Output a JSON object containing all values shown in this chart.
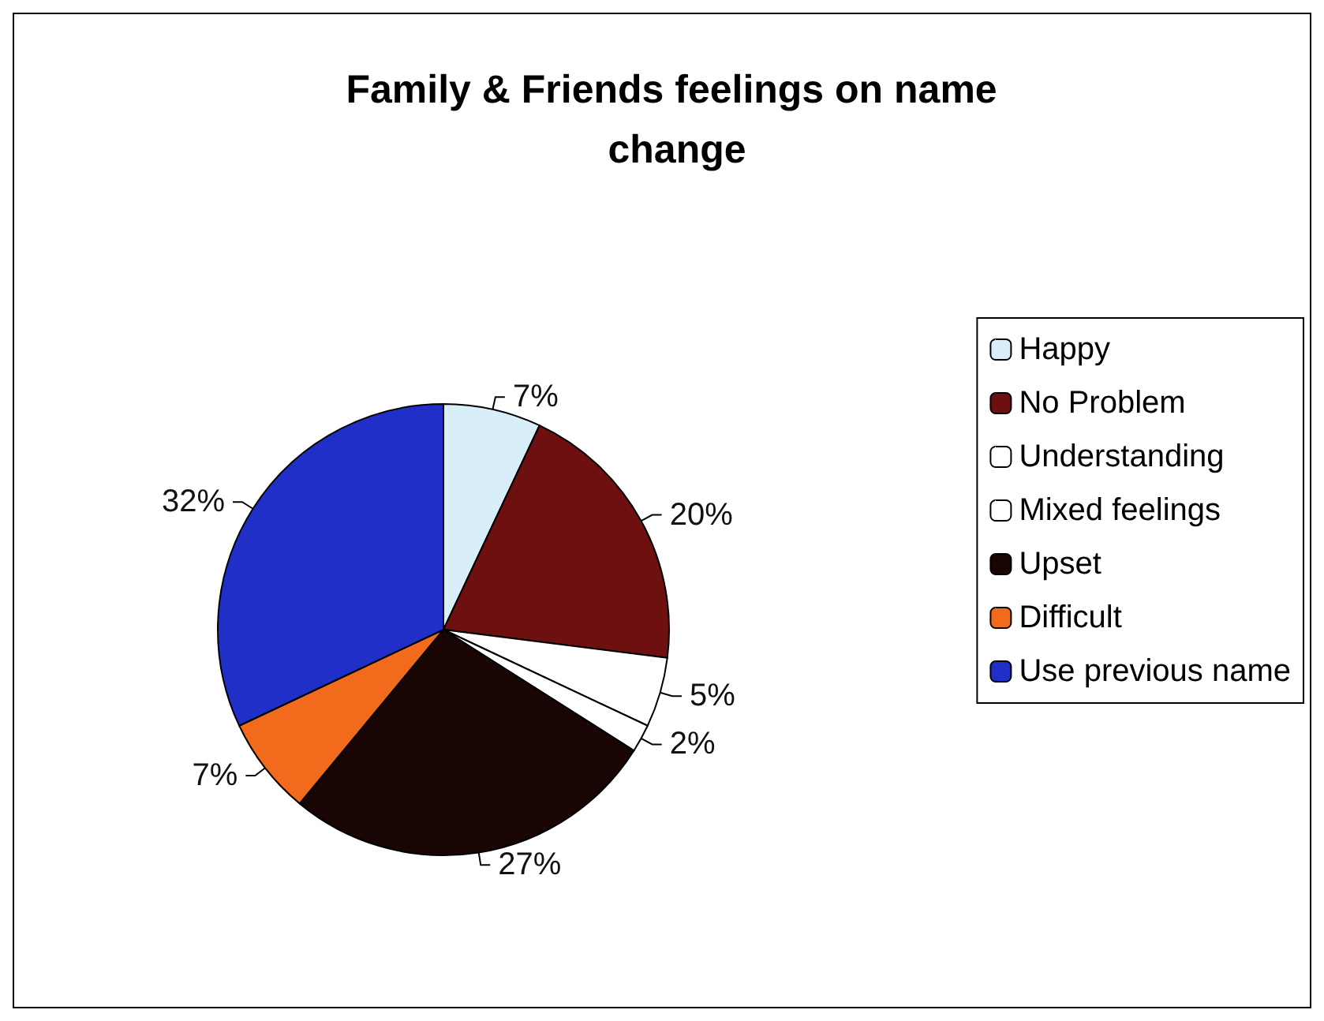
{
  "chart_data": {
    "type": "pie",
    "title": "Family & Friends feelings on name change",
    "categories": [
      "Happy",
      "No Problem",
      "Understanding",
      "Mixed feelings",
      "Upset",
      "Difficult",
      "Use previous name"
    ],
    "values": [
      7,
      20,
      5,
      2,
      27,
      7,
      32
    ],
    "colors": [
      "#d8eef8",
      "#6e1010",
      "#ffffff",
      "#ffffff",
      "#1a0505",
      "#f26a1b",
      "#1f2fc8"
    ],
    "value_labels": [
      "7%",
      "20%",
      "5%",
      "2%",
      "27%",
      "7%",
      "32%"
    ],
    "legend": "right"
  }
}
